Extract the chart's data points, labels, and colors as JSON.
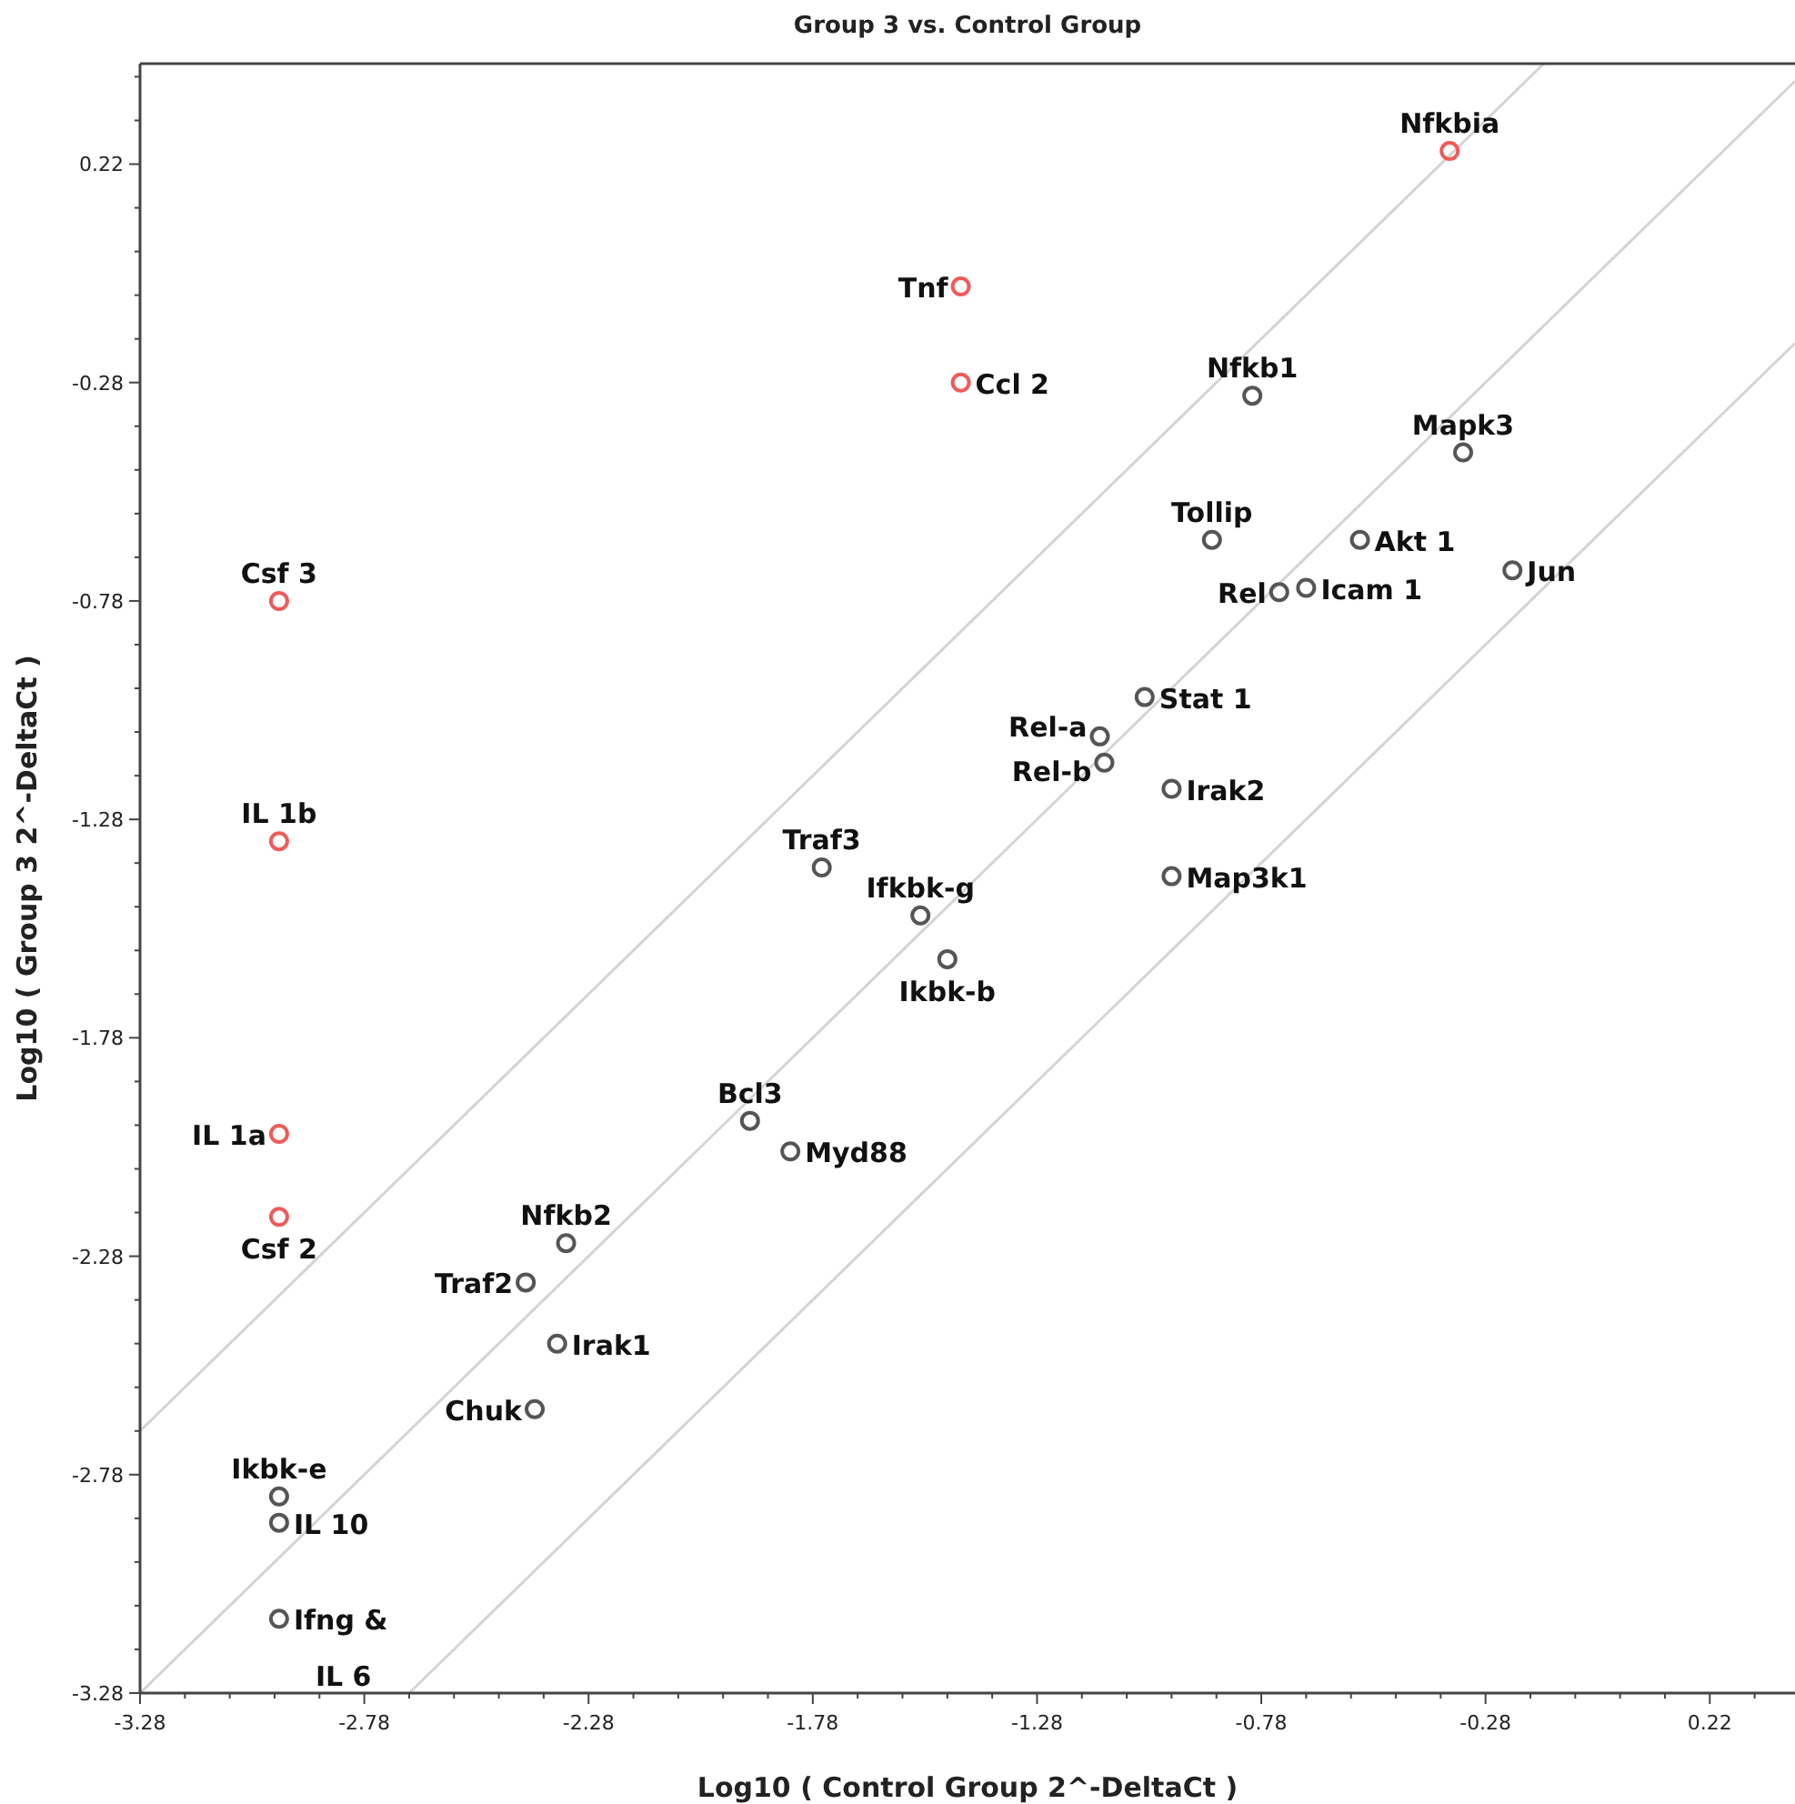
{
  "chart_data": {
    "type": "scatter",
    "title": "Group 3 vs. Control Group",
    "xlabel": "Log10 ( Control Group 2^-DeltaCt )",
    "ylabel": "Log10 ( Group 3 2^-DeltaCt )",
    "xlim": [
      -3.28,
      0.41
    ],
    "ylim": [
      -3.28,
      0.45
    ],
    "xticks": [
      -3.28,
      {
        "value": -3.18,
        "label": null
      },
      {
        "value": -3.08,
        "label": null
      },
      {
        "value": -2.98,
        "label": null
      },
      {
        "value": -2.88,
        "label": null
      },
      -2.78,
      {
        "value": -2.68,
        "label": null
      },
      {
        "value": -2.58,
        "label": null
      },
      {
        "value": -2.48,
        "label": null
      },
      {
        "value": -2.38,
        "label": null
      },
      -2.28,
      {
        "value": -2.18,
        "label": null
      },
      {
        "value": -2.08,
        "label": null
      },
      {
        "value": -1.98,
        "label": null
      },
      {
        "value": -1.88,
        "label": null
      },
      -1.78,
      {
        "value": -1.68,
        "label": null
      },
      {
        "value": -1.58,
        "label": null
      },
      {
        "value": -1.48,
        "label": null
      },
      {
        "value": -1.38,
        "label": null
      },
      -1.28,
      {
        "value": -1.18,
        "label": null
      },
      {
        "value": -1.08,
        "label": null
      },
      {
        "value": -0.98,
        "label": null
      },
      {
        "value": -0.88,
        "label": null
      },
      -0.78,
      {
        "value": -0.68,
        "label": null
      },
      {
        "value": -0.58,
        "label": null
      },
      {
        "value": -0.48,
        "label": null
      },
      {
        "value": -0.38,
        "label": null
      },
      -0.28,
      {
        "value": -0.18,
        "label": null
      },
      {
        "value": -0.08,
        "label": null
      },
      {
        "value": 0.02,
        "label": null
      },
      {
        "value": 0.12,
        "label": null
      },
      0.22,
      {
        "value": 0.32,
        "label": null
      }
    ],
    "yticks": [
      -3.28,
      {
        "value": -3.18,
        "label": null
      },
      {
        "value": -3.08,
        "label": null
      },
      {
        "value": -2.98,
        "label": null
      },
      {
        "value": -2.88,
        "label": null
      },
      -2.78,
      {
        "value": -2.68,
        "label": null
      },
      {
        "value": -2.58,
        "label": null
      },
      {
        "value": -2.48,
        "label": null
      },
      {
        "value": -2.38,
        "label": null
      },
      -2.28,
      {
        "value": -2.18,
        "label": null
      },
      {
        "value": -2.08,
        "label": null
      },
      {
        "value": -1.98,
        "label": null
      },
      {
        "value": -1.88,
        "label": null
      },
      -1.78,
      {
        "value": -1.68,
        "label": null
      },
      {
        "value": -1.58,
        "label": null
      },
      {
        "value": -1.48,
        "label": null
      },
      {
        "value": -1.38,
        "label": null
      },
      -1.28,
      {
        "value": -1.18,
        "label": null
      },
      {
        "value": -1.08,
        "label": null
      },
      {
        "value": -0.98,
        "label": null
      },
      {
        "value": -0.88,
        "label": null
      },
      -0.78,
      {
        "value": -0.68,
        "label": null
      },
      {
        "value": -0.58,
        "label": null
      },
      {
        "value": -0.48,
        "label": null
      },
      {
        "value": -0.38,
        "label": null
      },
      -0.28,
      {
        "value": -0.18,
        "label": null
      },
      {
        "value": -0.08,
        "label": null
      },
      {
        "value": 0.02,
        "label": null
      },
      {
        "value": 0.12,
        "label": null
      },
      0.22,
      {
        "value": 0.32,
        "label": null
      },
      {
        "value": 0.42,
        "label": null
      }
    ],
    "tick_labels": true,
    "grid": false,
    "marker": "circle",
    "series": [
      {
        "type": "line",
        "marker": "none",
        "color": "#d4d4d4",
        "x": [
          -3.28,
          -0.15
        ],
        "values": [
          -2.68,
          0.45
        ]
      },
      {
        "type": "line",
        "marker": "none",
        "color": "#d4d4d4",
        "x": [
          -3.28,
          0.41
        ],
        "values": [
          -3.28,
          0.41
        ]
      },
      {
        "type": "line",
        "marker": "none",
        "color": "#d4d4d4",
        "x": [
          -2.68,
          0.41
        ],
        "values": [
          -3.28,
          -0.19
        ]
      },
      {
        "color": "#f05a5a",
        "x": [
          -0.36,
          -1.45,
          -1.45,
          -2.97,
          -2.97,
          -2.97,
          -2.97
        ],
        "values": [
          0.25,
          -0.06,
          -0.28,
          -0.78,
          -1.33,
          -2.0,
          -2.19
        ]
      },
      {
        "color": "#555555",
        "x": [
          -0.8,
          -0.33,
          -0.89,
          -0.56,
          -0.74,
          -0.68,
          -0.22,
          -1.04,
          -1.14,
          -1.13,
          -0.98,
          -0.98,
          -1.76,
          -1.54,
          -1.48,
          -1.92,
          -1.83,
          -2.33,
          -2.42,
          -2.35,
          -2.4,
          -2.97,
          -2.97,
          -2.97
        ],
        "values": [
          -0.31,
          -0.44,
          -0.64,
          -0.64,
          -0.76,
          -0.75,
          -0.71,
          -1.0,
          -1.09,
          -1.15,
          -1.21,
          -1.41,
          -1.39,
          -1.5,
          -1.6,
          -1.97,
          -2.04,
          -2.25,
          -2.34,
          -2.48,
          -2.63,
          -2.83,
          -2.89,
          -3.11
        ]
      }
    ],
    "annotations": [
      {
        "text": "Nfkbia",
        "x": -0.36,
        "y": 0.25
      },
      {
        "text": "Tnf",
        "x": -1.45,
        "y": -0.06
      },
      {
        "text": "Ccl 2",
        "x": -1.45,
        "y": -0.28
      },
      {
        "text": "Csf 3",
        "x": -2.97,
        "y": -0.78
      },
      {
        "text": "IL 1b",
        "x": -2.97,
        "y": -1.33
      },
      {
        "text": "IL 1a",
        "x": -2.97,
        "y": -2.0
      },
      {
        "text": "Csf 2",
        "x": -2.97,
        "y": -2.19
      },
      {
        "text": "Nfkb1",
        "x": -0.8,
        "y": -0.31
      },
      {
        "text": "Mapk3",
        "x": -0.33,
        "y": -0.44
      },
      {
        "text": "Tollip",
        "x": -0.89,
        "y": -0.64
      },
      {
        "text": "Akt 1",
        "x": -0.56,
        "y": -0.64
      },
      {
        "text": "Rel",
        "x": -0.74,
        "y": -0.76
      },
      {
        "text": "Icam 1",
        "x": -0.68,
        "y": -0.75
      },
      {
        "text": "Jun",
        "x": -0.22,
        "y": -0.71
      },
      {
        "text": "Stat 1",
        "x": -1.04,
        "y": -1.0
      },
      {
        "text": "Rel-a",
        "x": -1.14,
        "y": -1.09
      },
      {
        "text": "Rel-b",
        "x": -1.13,
        "y": -1.15
      },
      {
        "text": "Irak2",
        "x": -0.98,
        "y": -1.21
      },
      {
        "text": "Map3k1",
        "x": -0.98,
        "y": -1.41
      },
      {
        "text": "Traf3",
        "x": -1.76,
        "y": -1.39
      },
      {
        "text": "Ifkbk-g",
        "x": -1.54,
        "y": -1.5
      },
      {
        "text": "Ikbk-b",
        "x": -1.48,
        "y": -1.6
      },
      {
        "text": "Bcl3",
        "x": -1.92,
        "y": -1.97
      },
      {
        "text": "Myd88",
        "x": -1.83,
        "y": -2.04
      },
      {
        "text": "Nfkb2",
        "x": -2.33,
        "y": -2.25
      },
      {
        "text": "Traf2",
        "x": -2.42,
        "y": -2.34
      },
      {
        "text": "Irak1",
        "x": -2.35,
        "y": -2.48
      },
      {
        "text": "Chuk",
        "x": -2.4,
        "y": -2.63
      },
      {
        "text": "Ikbk-e",
        "x": -2.97,
        "y": -2.83
      },
      {
        "text": "IL 10",
        "x": -2.97,
        "y": -2.89
      },
      {
        "text": "Ifng & IL 6",
        "x": -2.97,
        "y": -3.11
      }
    ]
  }
}
